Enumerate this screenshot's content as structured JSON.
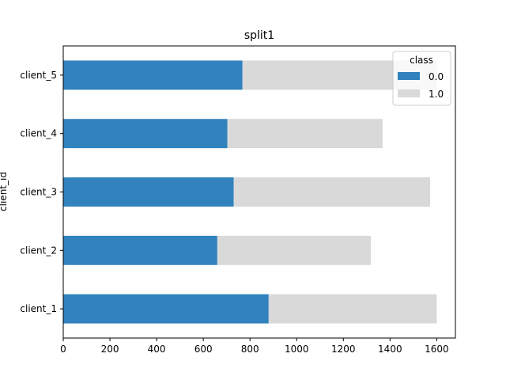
{
  "chart_data": {
    "type": "bar",
    "orientation": "horizontal",
    "stacked": true,
    "title": "split1",
    "xlabel": "",
    "ylabel": "client_id",
    "categories": [
      "client_1",
      "client_2",
      "client_3",
      "client_4",
      "client_5"
    ],
    "series": [
      {
        "name": "0.0",
        "color": "#3182bd",
        "values": [
          880,
          660,
          730,
          703,
          768
        ]
      },
      {
        "name": "1.0",
        "color": "#d9d9d9",
        "values": [
          720,
          658,
          842,
          665,
          832
        ]
      }
    ],
    "xlim": [
      0,
      1680
    ],
    "xticks": [
      0,
      200,
      400,
      600,
      800,
      1000,
      1200,
      1400,
      1600
    ],
    "legend": {
      "title": "class",
      "placement": "top-right"
    },
    "grid": false
  }
}
